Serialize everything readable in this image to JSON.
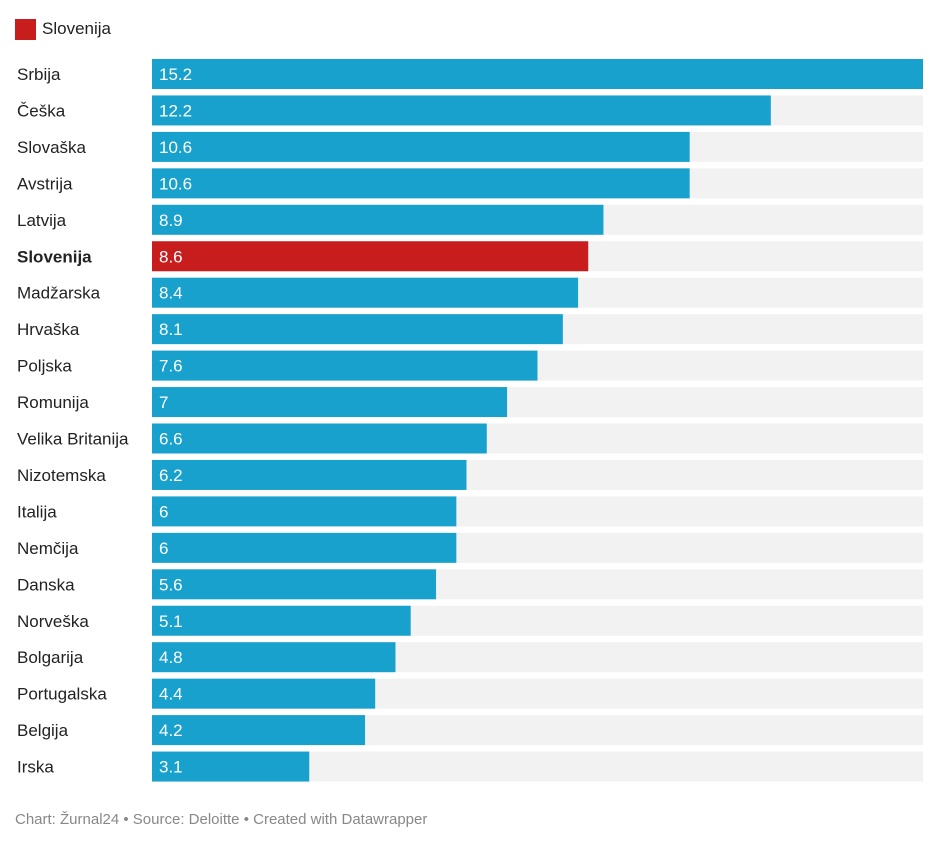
{
  "legend": {
    "label": "Slovenija",
    "color": "#c71e1d"
  },
  "colors": {
    "bar": "#18a1cd",
    "highlight": "#c71e1d",
    "track": "#f2f2f2"
  },
  "chart_data": {
    "type": "bar",
    "orientation": "horizontal",
    "categories": [
      "Srbija",
      "Češka",
      "Slovaška",
      "Avstrija",
      "Latvija",
      "Slovenija",
      "Madžarska",
      "Hrvaška",
      "Poljska",
      "Romunija",
      "Velika Britanija",
      "Nizotemska",
      "Italija",
      "Nemčija",
      "Danska",
      "Norveška",
      "Bolgarija",
      "Portugalska",
      "Belgija",
      "Irska"
    ],
    "values": [
      15.2,
      12.2,
      10.6,
      10.6,
      8.9,
      8.6,
      8.4,
      8.1,
      7.6,
      7,
      6.6,
      6.2,
      6,
      6,
      5.6,
      5.1,
      4.8,
      4.4,
      4.2,
      3.1
    ],
    "value_labels": [
      "15.2",
      "12.2",
      "10.6",
      "10.6",
      "8.9",
      "8.6",
      "8.4",
      "8.1",
      "7.6",
      "7",
      "6.6",
      "6.2",
      "6",
      "6",
      "5.6",
      "5.1",
      "4.8",
      "4.4",
      "4.2",
      "3.1"
    ],
    "highlight": "Slovenija",
    "xlim": [
      0,
      15.2
    ],
    "title": "",
    "xlabel": "",
    "ylabel": "",
    "grid": false
  },
  "footer": "Chart: Žurnal24 • Source: Deloitte • Created with Datawrapper"
}
